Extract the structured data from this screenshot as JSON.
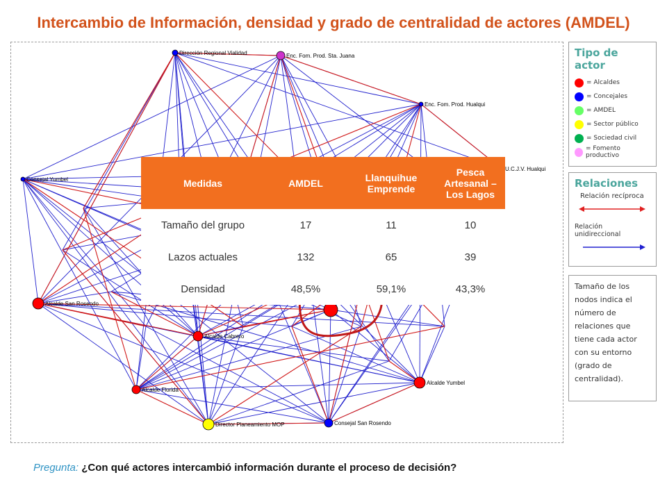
{
  "title": "Intercambio de Información, densidad y grado de centralidad de actores (AMDEL)",
  "legend": {
    "title": "Tipo de actor",
    "items": [
      {
        "label": "= Alcaldes",
        "color": "#ff0000"
      },
      {
        "label": "= Concejales",
        "color": "#0000ff"
      },
      {
        "label": "= AMDEL",
        "color": "#66ff66"
      },
      {
        "label": "= Sector público",
        "color": "#ffff00"
      },
      {
        "label": "= Sociedad civil",
        "color": "#00b050"
      },
      {
        "label": "= Fomento productivo",
        "color": "#ff99ff"
      }
    ]
  },
  "relations": {
    "title": "Relaciones",
    "reciprocal": "Relación recíproca",
    "unidirectional": "Relación unidireccional"
  },
  "note": "Tamaño de los nodos indica el número de relaciones que tiene cada actor con su entorno (grado de centralidad).",
  "table": {
    "headers": [
      "Medidas",
      "AMDEL",
      "Llanquihue Emprende",
      "Pesca Artesanal – Los Lagos"
    ],
    "rows": [
      [
        "Tamaño del grupo",
        "17",
        "11",
        "10"
      ],
      [
        "Lazos actuales",
        "132",
        "65",
        "39"
      ],
      [
        "Densidad",
        "48,5%",
        "59,1%",
        "43,3%"
      ]
    ]
  },
  "network": {
    "nodes": [
      {
        "label": "Dirección Regional Vialidad",
        "color": "#0000ff"
      },
      {
        "label": "Enc. Fom. Prod. Sta. Juana",
        "color": "#cc33cc"
      },
      {
        "label": "Enc. Fom. Prod. Hualqui",
        "color": "#0000ff"
      },
      {
        "label": "U.C.J.V. Hualqui",
        "color": "#0000ff"
      },
      {
        "label": "Consejal Yumbel",
        "color": "#0000ff"
      },
      {
        "label": "Alcalde San Rosendo",
        "color": "#ff0000"
      },
      {
        "label": "Alcalde Cabrero",
        "color": "#ff0000"
      },
      {
        "label": "Alcalde Florida",
        "color": "#ff0000"
      },
      {
        "label": "Alcalde Yumbel",
        "color": "#ff0000"
      },
      {
        "label": "Director Planeamiento MOP",
        "color": "#ffff00"
      },
      {
        "label": "Consejal San Rosendo",
        "color": "#0000ff"
      },
      {
        "label": "",
        "color": "#ff0000"
      }
    ]
  },
  "question": {
    "label": "Pregunta:",
    "text": "¿Con qué actores intercambió información durante el proceso de decisión?"
  }
}
